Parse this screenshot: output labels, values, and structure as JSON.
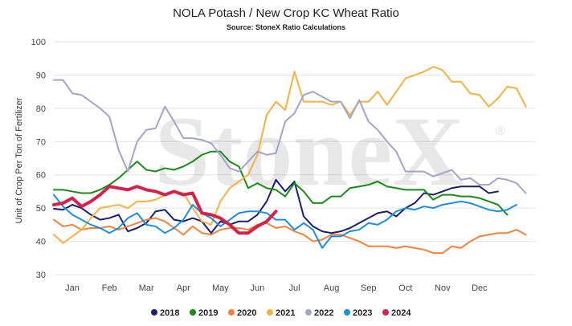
{
  "chart_data": {
    "type": "line",
    "title": "NOLA Potash / New Crop KC Wheat Ratio",
    "subtitle": "Source: StoneX Ratio Calculations",
    "ylabel": "Unit of Crop Per Ton of Fertilizer",
    "xlabel": "",
    "watermark": "StoneX",
    "ylim": [
      30,
      100
    ],
    "yticks": [
      30,
      40,
      50,
      60,
      70,
      80,
      90,
      100
    ],
    "xlim": [
      0,
      52
    ],
    "x_tick_labels": [
      "Jan",
      "Feb",
      "Mar",
      "Apr",
      "May",
      "Jun",
      "Jul",
      "Aug",
      "Sep",
      "Oct",
      "Nov",
      "Dec"
    ],
    "x_tick_positions": [
      2,
      6,
      10,
      14,
      18,
      22,
      26,
      30,
      34,
      38,
      42,
      46
    ],
    "grid": "horizontal",
    "legend_position": "bottom",
    "series": [
      {
        "name": "2018",
        "color": "#1a1f6e",
        "stroke_width": 2,
        "values": [
          49.8,
          49.5,
          51,
          50,
          48,
          46.5,
          47,
          48,
          43,
          44,
          45.5,
          49,
          49.5,
          46.5,
          46,
          47,
          46,
          42.5,
          46,
          45,
          46,
          46,
          48,
          52,
          58.5,
          55,
          58,
          47.5,
          44.5,
          43,
          42.5,
          43,
          44,
          45.5,
          47,
          48.5,
          49,
          47.5,
          50,
          51.5,
          54.5,
          54,
          55,
          56,
          56.5,
          56.5,
          56.5,
          54.5,
          55
        ]
      },
      {
        "name": "2019",
        "color": "#1a8a1a",
        "stroke_width": 2,
        "values": [
          55.5,
          55.5,
          55,
          54.5,
          54.5,
          55.5,
          57,
          59,
          61.5,
          64,
          61.5,
          61,
          62,
          61.5,
          62.5,
          64,
          66,
          67,
          67,
          64,
          62.5,
          56,
          57.5,
          56,
          55.5,
          53.5,
          57.5,
          55,
          51.5,
          51.5,
          53.5,
          53.5,
          56,
          56.5,
          57,
          58,
          56.5,
          56,
          55.5,
          55.5,
          55.5,
          52.5,
          54,
          54,
          53.5,
          53.5,
          53,
          52,
          51,
          48
        ]
      },
      {
        "name": "2020",
        "color": "#f4823e",
        "stroke_width": 2,
        "values": [
          46.5,
          44.5,
          45,
          43.5,
          44,
          44,
          44.5,
          43.5,
          44.5,
          45.5,
          46.5,
          47,
          46,
          44,
          42,
          44.5,
          42.5,
          42,
          43.5,
          44,
          44,
          43.5,
          45,
          45.5,
          44,
          44.5,
          43,
          42,
          40,
          40.5,
          42,
          42,
          41,
          40,
          38.5,
          38.5,
          38.5,
          38,
          38.5,
          38,
          37.5,
          36.5,
          36.5,
          38.5,
          38,
          40,
          41.5,
          42,
          42.5,
          42.5,
          43.5,
          42
        ]
      },
      {
        "name": "2021",
        "color": "#f5b243",
        "stroke_width": 2,
        "values": [
          42,
          39.5,
          41.5,
          43.5,
          47,
          50,
          50.5,
          51,
          50,
          52,
          52,
          52.5,
          54,
          55,
          54.5,
          50,
          46,
          45,
          52,
          56,
          58,
          60,
          66,
          78,
          82,
          79.5,
          91,
          82,
          82,
          82,
          81,
          82,
          78,
          82,
          82,
          85,
          81,
          85,
          89,
          90,
          91,
          92.5,
          91.5,
          88,
          88,
          84.5,
          84,
          80.5,
          83,
          86.5,
          86,
          80.5
        ]
      },
      {
        "name": "2022",
        "color": "#a5a3c9",
        "stroke_width": 2,
        "values": [
          88.5,
          88.5,
          84.5,
          84,
          82,
          80,
          77.5,
          67.5,
          61,
          70,
          73.5,
          74,
          80.5,
          76,
          71,
          71,
          70.5,
          69.5,
          66,
          62,
          61,
          64,
          67,
          66,
          66.5,
          76,
          78.5,
          84,
          85,
          83.5,
          82,
          82,
          77,
          82.5,
          76,
          73.5,
          70,
          67,
          61,
          61,
          61,
          59.5,
          60.5,
          61.5,
          58.5,
          59,
          57,
          57,
          59,
          58.5,
          57.5,
          54.5
        ]
      },
      {
        "name": "2023",
        "color": "#1c8fd9",
        "stroke_width": 2,
        "values": [
          54,
          50.5,
          48,
          46.5,
          45,
          44,
          42.5,
          44,
          47,
          48.5,
          45,
          44.5,
          42.5,
          44,
          46.5,
          51,
          48.5,
          47,
          44.5,
          46.5,
          48.5,
          49,
          49,
          48.5,
          46.5,
          46.5,
          43.5,
          45.5,
          43.5,
          38,
          41.5,
          41.5,
          43,
          43.5,
          45.5,
          45,
          46.5,
          49,
          50,
          49.5,
          50.5,
          50,
          51,
          51.5,
          52,
          51.5,
          50.5,
          49.5,
          49,
          49.5,
          51
        ]
      },
      {
        "name": "2024",
        "color": "#d4234a",
        "stroke_width": 4,
        "values": [
          51,
          51.5,
          53,
          50.5,
          52,
          54,
          56.5,
          56,
          55.5,
          56.5,
          55.5,
          55,
          54,
          55,
          54,
          54.5,
          48.5,
          48,
          47,
          45,
          42.5,
          42.5,
          44.5,
          46,
          49
        ]
      }
    ]
  }
}
